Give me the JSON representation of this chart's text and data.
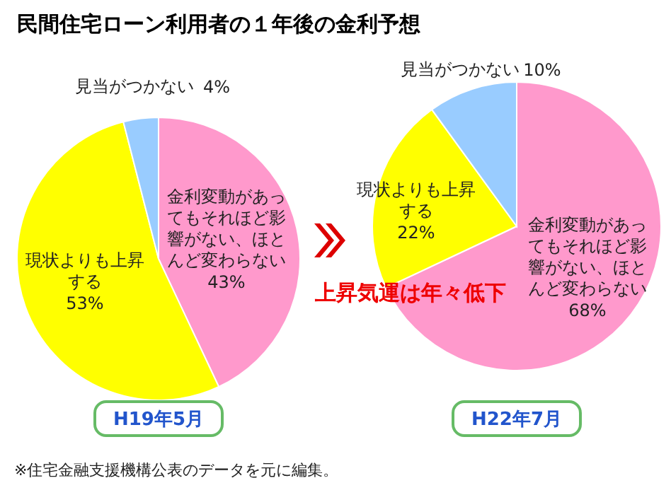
{
  "chart_data": [
    {
      "type": "pie",
      "title": "民間住宅ローン利用者の１年後の金利予想",
      "xlabel": "H19年5月",
      "data_labels": true,
      "categories": [
        "金利変動があってもそれほど影響がない、ほとんど変わらない",
        "現状よりも上昇する",
        "見当がつかない"
      ],
      "values": [
        43,
        53,
        4
      ],
      "value_labels": [
        "43%",
        "53%",
        "4%"
      ],
      "colors": [
        "#ff99cc",
        "#ffff00",
        "#99ccff"
      ],
      "annotations": [
        "上昇気運は年々低下",
        "※住宅金融支援機構公表のデータを元に編集。"
      ]
    },
    {
      "type": "pie",
      "xlabel": "H22年7月",
      "data_labels": true,
      "categories": [
        "金利変動があってもそれほど影響がない、ほとんど変わらない",
        "現状よりも上昇する",
        "見当がつかない"
      ],
      "values": [
        68,
        22,
        10
      ],
      "value_labels": [
        "68%",
        "22%",
        "10%"
      ],
      "colors": [
        "#ff99cc",
        "#ffff00",
        "#99ccff"
      ]
    }
  ]
}
